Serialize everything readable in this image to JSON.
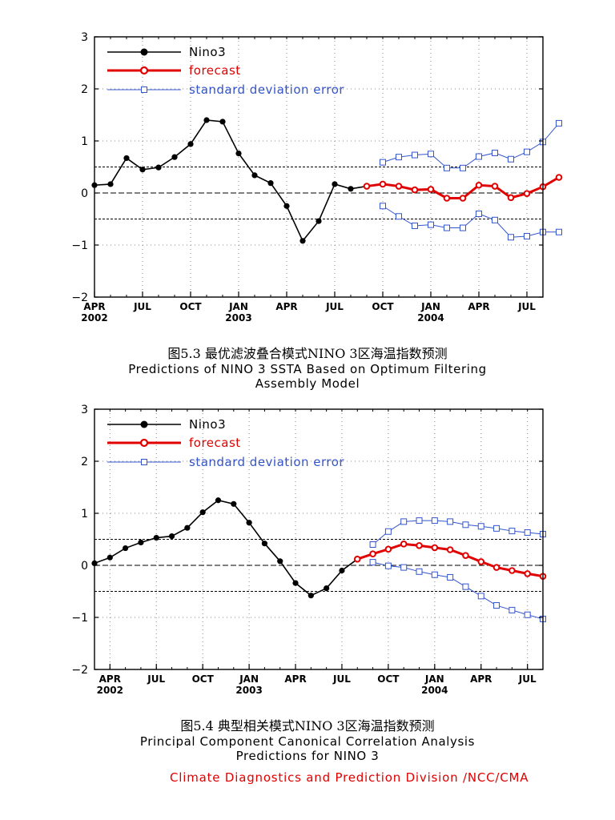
{
  "colors": {
    "nino3": "#000000",
    "forecast": "#e00000",
    "sde": "#3355cc",
    "footer": "#e00000"
  },
  "chart_data": [
    {
      "type": "line",
      "caption_cn": "图5.3 最优滤波叠合模式NINO 3区海温指数预测",
      "caption_en": [
        "Predictions of NINO 3 SSTA Based on Optimum Filtering",
        "Assembly Model"
      ],
      "ylim": [
        -2,
        3
      ],
      "yticks": [
        "−2",
        "−1",
        "0",
        "1",
        "2",
        "3"
      ],
      "x_range_months": [
        0,
        28
      ],
      "xticks": [
        {
          "m": 0,
          "label": "APR",
          "year": "2002"
        },
        {
          "m": 3,
          "label": "JUL",
          "year": ""
        },
        {
          "m": 6,
          "label": "OCT",
          "year": ""
        },
        {
          "m": 9,
          "label": "JAN",
          "year": "2003"
        },
        {
          "m": 12,
          "label": "APR",
          "year": ""
        },
        {
          "m": 15,
          "label": "JUL",
          "year": ""
        },
        {
          "m": 18,
          "label": "OCT",
          "year": ""
        },
        {
          "m": 21,
          "label": "JAN",
          "year": "2004"
        },
        {
          "m": 24,
          "label": "APR",
          "year": ""
        },
        {
          "m": 27,
          "label": "JUL",
          "year": ""
        }
      ],
      "reference_lines": [
        0.5,
        0,
        -0.5
      ],
      "legend": [
        "Nino3",
        "forecast",
        "standard deviation error"
      ],
      "series": {
        "nino3": {
          "start": 0,
          "values": [
            0.15,
            0.17,
            0.67,
            0.45,
            0.49,
            0.69,
            0.94,
            1.4,
            1.37,
            0.76,
            0.34,
            0.19,
            -0.25,
            -0.92,
            -0.54,
            0.17,
            0.08,
            0.13
          ]
        },
        "forecast": {
          "start": 17,
          "values": [
            0.13,
            0.17,
            0.13,
            0.06,
            0.07,
            -0.1,
            -0.1,
            0.15,
            0.13,
            -0.09,
            -0.01,
            0.12,
            0.3
          ]
        },
        "sde_upper": {
          "start": 18,
          "values": [
            0.59,
            0.69,
            0.73,
            0.75,
            0.48,
            0.48,
            0.7,
            0.77,
            0.65,
            0.79,
            0.98,
            1.34
          ]
        },
        "sde_lower": {
          "start": 18,
          "values": [
            -0.25,
            -0.45,
            -0.63,
            -0.61,
            -0.67,
            -0.67,
            -0.4,
            -0.52,
            -0.85,
            -0.83,
            -0.75,
            -0.75
          ]
        }
      }
    },
    {
      "type": "line",
      "caption_cn": "图5.4 典型相关模式NINO 3区海温指数预测",
      "caption_en": [
        "Principal Component Canonical Correlation Analysis",
        "Predictions for NINO 3"
      ],
      "ylim": [
        -2,
        3
      ],
      "yticks": [
        "−2",
        "−1",
        "0",
        "1",
        "2",
        "3"
      ],
      "x_range_months": [
        -1,
        28
      ],
      "xticks": [
        {
          "m": 0,
          "label": "APR",
          "year": "2002"
        },
        {
          "m": 3,
          "label": "JUL",
          "year": ""
        },
        {
          "m": 6,
          "label": "OCT",
          "year": ""
        },
        {
          "m": 9,
          "label": "JAN",
          "year": "2003"
        },
        {
          "m": 12,
          "label": "APR",
          "year": ""
        },
        {
          "m": 15,
          "label": "JUL",
          "year": ""
        },
        {
          "m": 18,
          "label": "OCT",
          "year": ""
        },
        {
          "m": 21,
          "label": "JAN",
          "year": "2004"
        },
        {
          "m": 24,
          "label": "APR",
          "year": ""
        },
        {
          "m": 27,
          "label": "JUL",
          "year": ""
        }
      ],
      "reference_lines": [
        0.5,
        0,
        -0.5
      ],
      "legend": [
        "Nino3",
        "forecast",
        "standard deviation error"
      ],
      "series": {
        "nino3": {
          "start": -1,
          "values": [
            0.04,
            0.15,
            0.33,
            0.44,
            0.53,
            0.56,
            0.72,
            1.02,
            1.25,
            1.18,
            0.82,
            0.42,
            0.08,
            -0.34,
            -0.58,
            -0.44,
            -0.1,
            0.12
          ]
        },
        "forecast": {
          "start": 16,
          "values": [
            0.12,
            0.22,
            0.31,
            0.41,
            0.38,
            0.34,
            0.3,
            0.19,
            0.07,
            -0.04,
            -0.1,
            -0.16,
            -0.21
          ]
        },
        "sde_upper": {
          "start": 17,
          "values": [
            0.4,
            0.65,
            0.84,
            0.86,
            0.86,
            0.84,
            0.78,
            0.75,
            0.71,
            0.66,
            0.63,
            0.6
          ]
        },
        "sde_lower": {
          "start": 17,
          "values": [
            0.06,
            -0.01,
            -0.04,
            -0.12,
            -0.18,
            -0.23,
            -0.41,
            -0.59,
            -0.77,
            -0.86,
            -0.95,
            -1.03
          ]
        }
      }
    }
  ],
  "footer": "Climate Diagnostics and Prediction Division /NCC/CMA"
}
